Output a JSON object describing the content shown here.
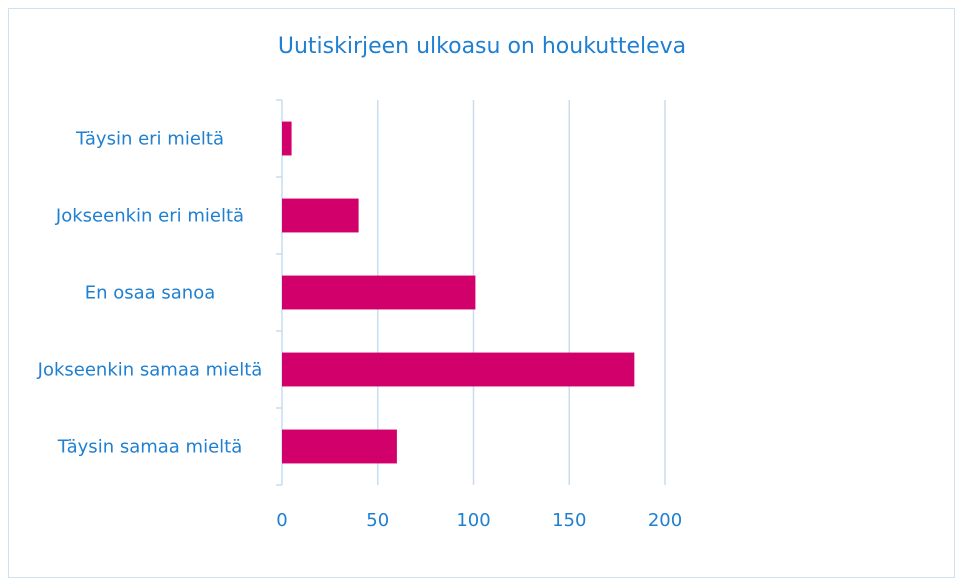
{
  "chart_data": {
    "type": "barh",
    "title": "Uutiskirjeen ulkoasu on houkutteleva",
    "categories": [
      "Täysin eri mieltä",
      "Jokseenkin eri mieltä",
      "En osaa sanoa",
      "Jokseenkin samaa mieltä",
      "Täysin samaa mieltä"
    ],
    "values": [
      5,
      40,
      101,
      184,
      60
    ],
    "color": "#d1006b",
    "xlim": [
      0,
      200
    ],
    "xticks": [
      0,
      50,
      100,
      150,
      200
    ],
    "grid": true
  }
}
